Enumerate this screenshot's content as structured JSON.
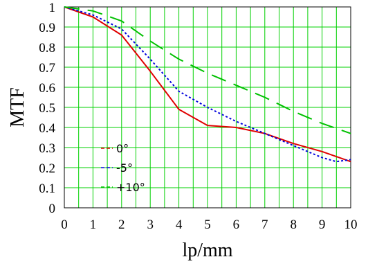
{
  "chart_data": {
    "type": "line",
    "xlabel": "lp/mm",
    "ylabel": "MTF",
    "xlim": [
      0,
      10
    ],
    "ylim": [
      0,
      1
    ],
    "x_ticks": [
      "0",
      "1",
      "2",
      "3",
      "4",
      "5",
      "6",
      "7",
      "8",
      "9",
      "10"
    ],
    "y_ticks": [
      "0",
      "0.1",
      "0.2",
      "0.3",
      "0.4",
      "0.5",
      "0.6",
      "0.7",
      "0.8",
      "0.9",
      "1"
    ],
    "x_minor_step": 0.5,
    "grid": true,
    "grid_color": "#00d000",
    "legend_position": "bottom-left",
    "series": [
      {
        "name": "0°",
        "color": "#e00000",
        "style": "solid",
        "x": [
          0,
          1,
          2,
          3,
          4,
          5,
          6,
          7,
          8,
          9,
          10
        ],
        "y": [
          1.0,
          0.95,
          0.86,
          0.68,
          0.49,
          0.41,
          0.4,
          0.37,
          0.32,
          0.28,
          0.23
        ]
      },
      {
        "name": "-5°",
        "color": "#0000dd",
        "style": "dotted",
        "x": [
          0,
          1,
          2,
          3,
          4,
          5,
          6,
          7,
          8,
          9,
          9.5,
          10
        ],
        "y": [
          1.0,
          0.96,
          0.89,
          0.74,
          0.58,
          0.5,
          0.43,
          0.37,
          0.31,
          0.25,
          0.23,
          0.24
        ]
      },
      {
        "name": "+10°",
        "color": "#00c000",
        "style": "dashed",
        "x": [
          0,
          1,
          2,
          3,
          4,
          5,
          6,
          7,
          8,
          9,
          10
        ],
        "y": [
          1.0,
          0.98,
          0.93,
          0.83,
          0.74,
          0.67,
          0.61,
          0.55,
          0.48,
          0.42,
          0.37
        ]
      }
    ]
  }
}
